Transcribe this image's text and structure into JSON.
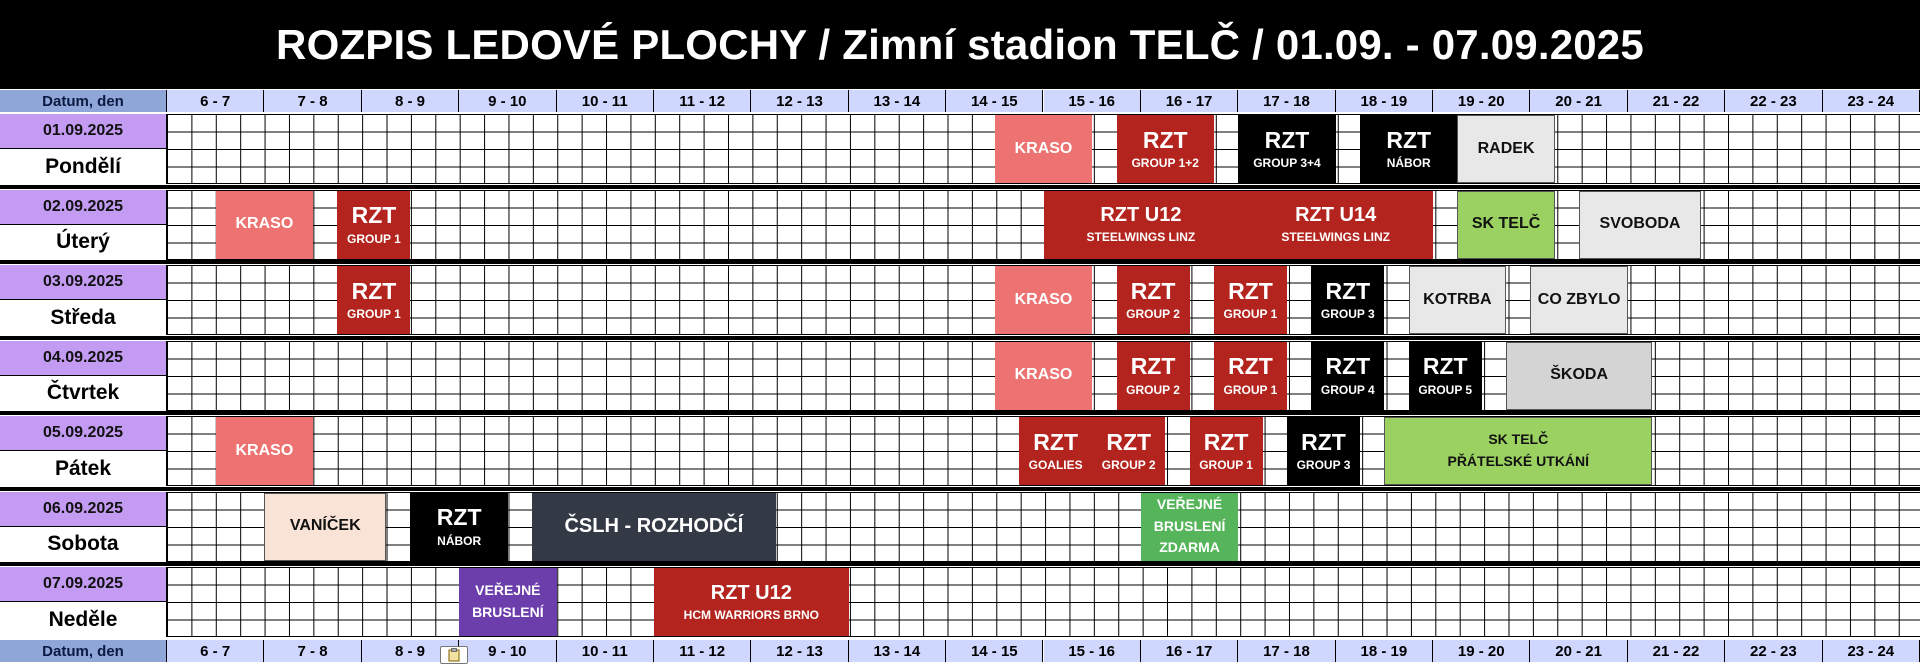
{
  "title": "ROZPIS LEDOVÉ PLOCHY / Zimní stadion TELČ / 01.09. - 07.09.2025",
  "header_label": "Datum, den",
  "hours": [
    "6 - 7",
    "7 - 8",
    "8 - 9",
    "9 - 10",
    "10 - 11",
    "11 - 12",
    "12 - 13",
    "13 - 14",
    "14 - 15",
    "15 - 16",
    "16 - 17",
    "17 - 18",
    "18 - 19",
    "19 - 20",
    "20 - 21",
    "21 - 22",
    "22 - 23",
    "23 - 24"
  ],
  "colors": {
    "kraso": "#ec7371",
    "rzt_red": "#b3241e",
    "black": "#000000",
    "light_gray": "#e8e8e8",
    "mid_gray": "#d4d4d4",
    "green": "#9bd161",
    "peach": "#f9e3d6",
    "slate": "#333a46",
    "public_green": "#56b45a",
    "purple": "#6c3eac"
  },
  "days": [
    {
      "date": "01.09.2025",
      "name": "Pondělí",
      "events": [
        {
          "start": 14.5,
          "end": 15.5,
          "color": "kraso",
          "main": "KRASO",
          "size": "small"
        },
        {
          "start": 15.75,
          "end": 16.75,
          "color": "rzt_red",
          "main": "RZT",
          "sub": "GROUP 1+2"
        },
        {
          "start": 17.0,
          "end": 18.0,
          "color": "black",
          "main": "RZT",
          "sub": "GROUP 3+4"
        },
        {
          "start": 18.25,
          "end": 19.25,
          "color": "black",
          "main": "RZT",
          "sub": "NÁBOR"
        },
        {
          "start": 19.25,
          "end": 20.25,
          "color": "light_gray",
          "main": "RADEK",
          "size": "small"
        }
      ]
    },
    {
      "date": "02.09.2025",
      "name": "Úterý",
      "events": [
        {
          "start": 6.5,
          "end": 7.5,
          "color": "kraso",
          "main": "KRASO",
          "size": "small"
        },
        {
          "start": 7.75,
          "end": 8.5,
          "color": "rzt_red",
          "main": "RZT",
          "sub": "GROUP 1"
        },
        {
          "start": 15.0,
          "end": 17.0,
          "color": "rzt_red",
          "main": "RZT U12",
          "sub": "STEELWINGS LINZ",
          "size": "medium"
        },
        {
          "start": 17.0,
          "end": 19.0,
          "color": "rzt_red",
          "main": "RZT U14",
          "sub": "STEELWINGS LINZ",
          "size": "medium"
        },
        {
          "start": 19.25,
          "end": 20.25,
          "color": "green",
          "main": "SK TELČ",
          "size": "small"
        },
        {
          "start": 20.5,
          "end": 21.75,
          "color": "light_gray",
          "main": "SVOBODA",
          "size": "small"
        }
      ]
    },
    {
      "date": "03.09.2025",
      "name": "Středa",
      "events": [
        {
          "start": 7.75,
          "end": 8.5,
          "color": "rzt_red",
          "main": "RZT",
          "sub": "GROUP 1"
        },
        {
          "start": 14.5,
          "end": 15.5,
          "color": "kraso",
          "main": "KRASO",
          "size": "small"
        },
        {
          "start": 15.75,
          "end": 16.5,
          "color": "rzt_red",
          "main": "RZT",
          "sub": "GROUP 2"
        },
        {
          "start": 16.75,
          "end": 17.5,
          "color": "rzt_red",
          "main": "RZT",
          "sub": "GROUP 1"
        },
        {
          "start": 17.75,
          "end": 18.5,
          "color": "black",
          "main": "RZT",
          "sub": "GROUP 3"
        },
        {
          "start": 18.75,
          "end": 19.75,
          "color": "light_gray",
          "main": "KOTRBA",
          "size": "small"
        },
        {
          "start": 20.0,
          "end": 21.0,
          "color": "light_gray",
          "main": "CO ZBYLO",
          "size": "small"
        }
      ]
    },
    {
      "date": "04.09.2025",
      "name": "Čtvrtek",
      "events": [
        {
          "start": 14.5,
          "end": 15.5,
          "color": "kraso",
          "main": "KRASO",
          "size": "small"
        },
        {
          "start": 15.75,
          "end": 16.5,
          "color": "rzt_red",
          "main": "RZT",
          "sub": "GROUP 2"
        },
        {
          "start": 16.75,
          "end": 17.5,
          "color": "rzt_red",
          "main": "RZT",
          "sub": "GROUP 1"
        },
        {
          "start": 17.75,
          "end": 18.5,
          "color": "black",
          "main": "RZT",
          "sub": "GROUP 4"
        },
        {
          "start": 18.75,
          "end": 19.5,
          "color": "black",
          "main": "RZT",
          "sub": "GROUP 5"
        },
        {
          "start": 19.75,
          "end": 21.25,
          "color": "mid_gray",
          "main": "ŠKODA",
          "size": "small"
        }
      ]
    },
    {
      "date": "05.09.2025",
      "name": "Pátek",
      "events": [
        {
          "start": 6.5,
          "end": 7.5,
          "color": "kraso",
          "main": "KRASO",
          "size": "small"
        },
        {
          "start": 14.75,
          "end": 15.5,
          "color": "rzt_red",
          "main": "RZT",
          "sub": "GOALIES"
        },
        {
          "start": 15.5,
          "end": 16.25,
          "color": "rzt_red",
          "main": "RZT",
          "sub": "GROUP 2"
        },
        {
          "start": 16.5,
          "end": 17.25,
          "color": "rzt_red",
          "main": "RZT",
          "sub": "GROUP 1"
        },
        {
          "start": 17.5,
          "end": 18.25,
          "color": "black",
          "main": "RZT",
          "sub": "GROUP 3"
        },
        {
          "start": 18.5,
          "end": 21.25,
          "color": "green",
          "main": "SK TELČ\nPŘÁTELSKÉ UTKÁNÍ",
          "size": "multi"
        }
      ]
    },
    {
      "date": "06.09.2025",
      "name": "Sobota",
      "events": [
        {
          "start": 7.0,
          "end": 8.25,
          "color": "peach",
          "main": "VANÍČEK",
          "size": "small"
        },
        {
          "start": 8.5,
          "end": 9.5,
          "color": "black",
          "main": "RZT",
          "sub": "NÁBOR"
        },
        {
          "start": 9.75,
          "end": 12.25,
          "color": "slate",
          "main": "ČSLH - ROZHODČÍ",
          "size": "medium"
        },
        {
          "start": 16.0,
          "end": 17.0,
          "color": "public_green",
          "main": "VEŘEJNÉ\nBRUSLENÍ\nZDARMA",
          "size": "multi"
        }
      ]
    },
    {
      "date": "07.09.2025",
      "name": "Neděle",
      "events": [
        {
          "start": 9.0,
          "end": 10.0,
          "color": "purple",
          "main": "VEŘEJNÉ\nBRUSLENÍ",
          "size": "multi"
        },
        {
          "start": 11.0,
          "end": 13.0,
          "color": "rzt_red",
          "main": "RZT U12",
          "sub": "HCM WARRIORS BRNO",
          "size": "medium"
        }
      ]
    }
  ]
}
